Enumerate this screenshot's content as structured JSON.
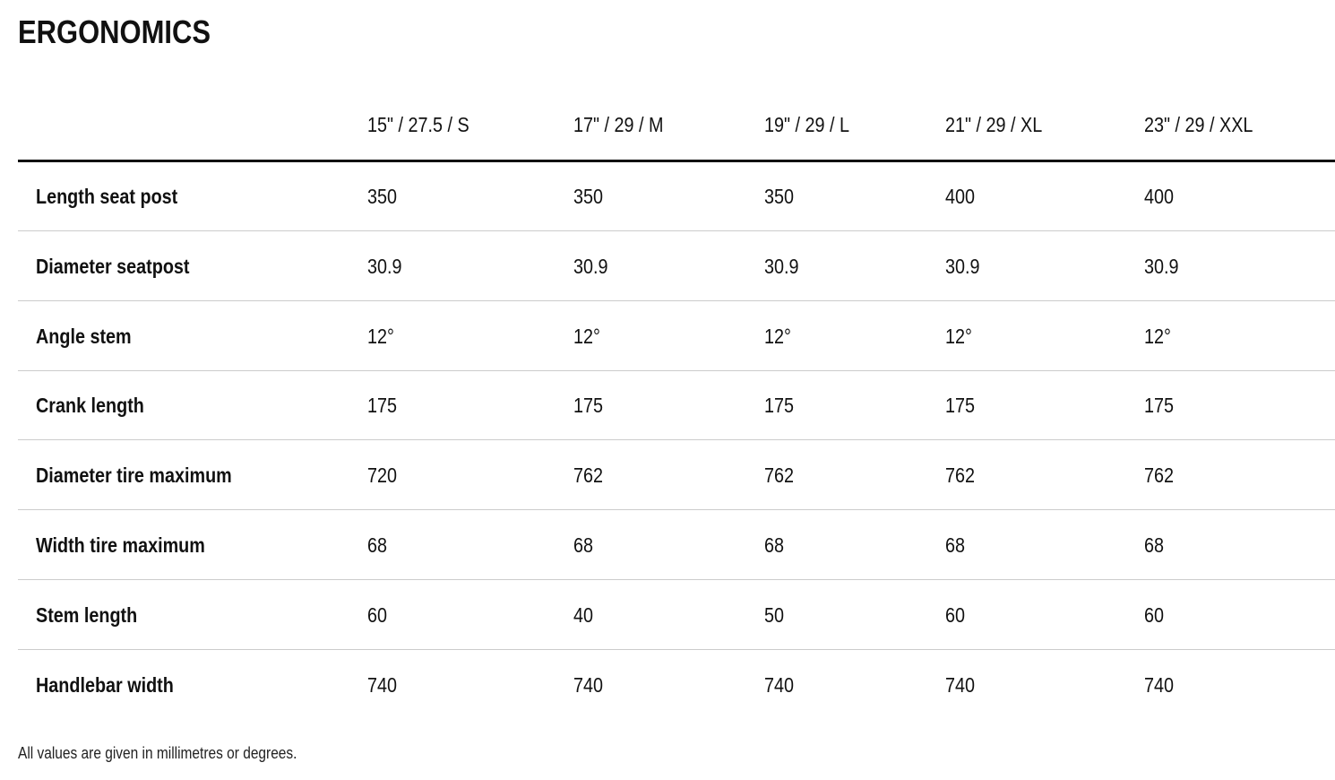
{
  "title": "ERGONOMICS",
  "table": {
    "columns": [
      "15\" / 27.5 / S",
      "17\" / 29 / M",
      "19\" / 29 / L",
      "21\" / 29 / XL",
      "23\" / 29 / XXL"
    ],
    "rows": [
      {
        "label": "Length seat post",
        "cells": [
          "350",
          "350",
          "350",
          "400",
          "400"
        ]
      },
      {
        "label": "Diameter seatpost",
        "cells": [
          "30.9",
          "30.9",
          "30.9",
          "30.9",
          "30.9"
        ]
      },
      {
        "label": "Angle stem",
        "cells": [
          "12°",
          "12°",
          "12°",
          "12°",
          "12°"
        ]
      },
      {
        "label": "Crank length",
        "cells": [
          "175",
          "175",
          "175",
          "175",
          "175"
        ]
      },
      {
        "label": "Diameter tire maximum",
        "cells": [
          "720",
          "762",
          "762",
          "762",
          "762"
        ]
      },
      {
        "label": "Width tire maximum",
        "cells": [
          "68",
          "68",
          "68",
          "68",
          "68"
        ]
      },
      {
        "label": "Stem length",
        "cells": [
          "60",
          "40",
          "50",
          "60",
          "60"
        ]
      },
      {
        "label": "Handlebar width",
        "cells": [
          "740",
          "740",
          "740",
          "740",
          "740"
        ]
      }
    ]
  },
  "footnote": "All values are given in millimetres or degrees."
}
